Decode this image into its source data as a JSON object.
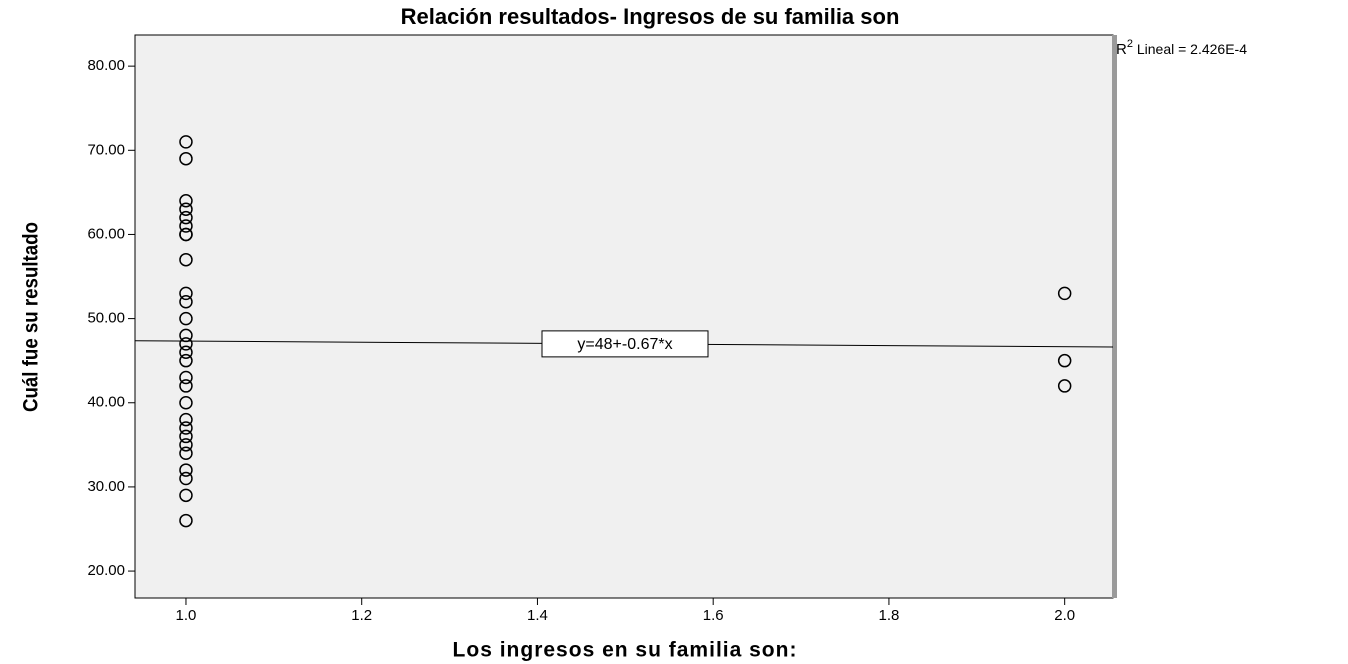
{
  "chart_data": {
    "type": "scatter",
    "title": "Relación resultados- Ingresos de su familia son",
    "xlabel": "Los ingresos en su familia son:",
    "ylabel": "Cuál fue su resultado",
    "x": [
      1,
      1,
      1,
      1,
      1,
      1,
      1,
      1,
      1,
      1,
      1,
      1,
      1,
      1,
      1,
      1,
      1,
      1,
      1,
      1,
      1,
      1,
      1,
      1,
      1,
      1,
      1,
      1,
      2,
      2,
      2
    ],
    "values": [
      71,
      69,
      64,
      63,
      62,
      61,
      60,
      57,
      53,
      52,
      50,
      48,
      47,
      46,
      45,
      43,
      42,
      40,
      38,
      37,
      36,
      35,
      34,
      32,
      31,
      29,
      26,
      60,
      53,
      45,
      42
    ],
    "color": "#000000",
    "fit": {
      "intercept": 48,
      "slope": -0.67,
      "label": "y=48+-0.67*x"
    },
    "r2_annotation": {
      "symbol": "R",
      "sup": "2",
      "text": " Lineal = 2.426E-4"
    },
    "xlim": [
      0.942,
      2.055
    ],
    "ylim": [
      16.8,
      83.7
    ],
    "xticks": [
      {
        "value": 1,
        "label": "1.0"
      },
      1.2,
      1.4,
      1.6,
      1.8,
      {
        "value": 2,
        "label": "2.0"
      }
    ],
    "yticks": [
      {
        "value": 20,
        "label": "20.00"
      },
      {
        "value": 30,
        "label": "30.00"
      },
      {
        "value": 40,
        "label": "40.00"
      },
      {
        "value": 50,
        "label": "50.00"
      },
      {
        "value": 60,
        "label": "60.00"
      },
      {
        "value": 70,
        "label": "70.00"
      },
      {
        "value": 80,
        "label": "80.00"
      }
    ],
    "grid": false
  }
}
